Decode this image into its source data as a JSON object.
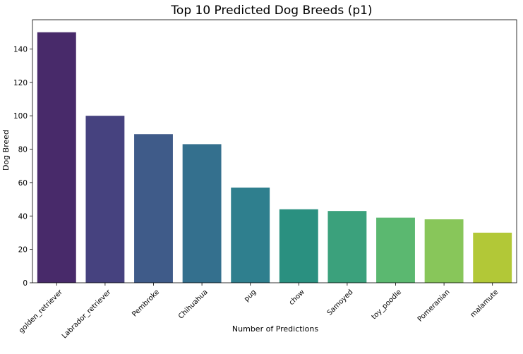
{
  "chart_data": {
    "type": "bar",
    "title": "Top 10 Predicted Dog Breeds (p1)",
    "xlabel": "Number of Predictions",
    "ylabel": "Dog Breed",
    "categories": [
      "golden_retriever",
      "Labrador_retriever",
      "Pembroke",
      "Chihuahua",
      "pug",
      "chow",
      "Samoyed",
      "toy_poodle",
      "Pomeranian",
      "malamute"
    ],
    "values": [
      150,
      100,
      89,
      83,
      57,
      44,
      43,
      39,
      38,
      30
    ],
    "colors": [
      "#482a6a",
      "#46427f",
      "#3f5b89",
      "#34708e",
      "#2f7f8e",
      "#2a9080",
      "#3ba17c",
      "#5bb870",
      "#88c65a",
      "#b2c837"
    ],
    "yticks": [
      0,
      20,
      40,
      60,
      80,
      100,
      120,
      140
    ],
    "ylim": [
      0,
      157.5
    ],
    "grid": false,
    "legend": "none"
  }
}
